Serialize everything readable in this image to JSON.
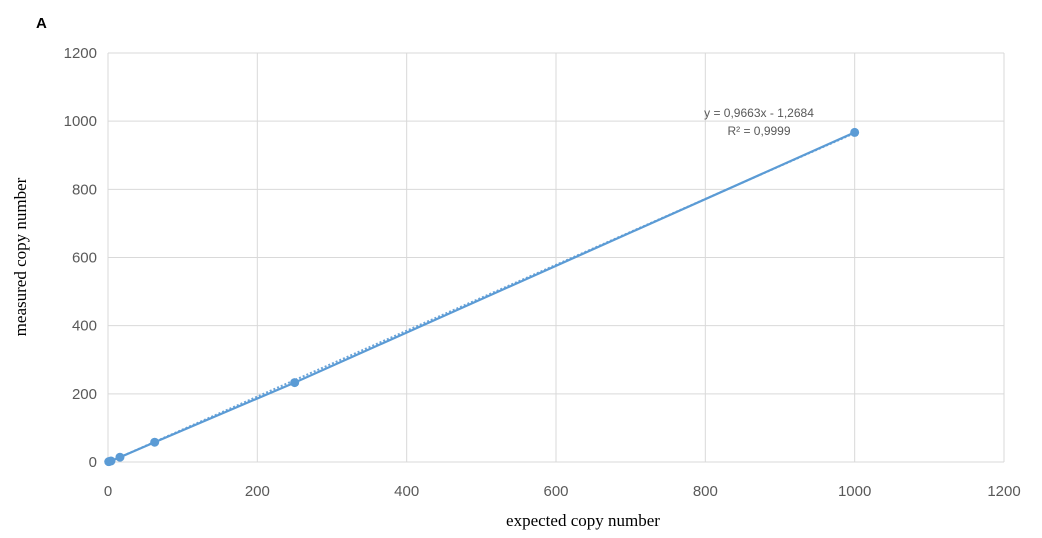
{
  "panel_label": "A",
  "chart_data": {
    "type": "scatter",
    "xlabel": "expected copy number",
    "ylabel": "measured copy number",
    "xlim": [
      0,
      1200
    ],
    "ylim": [
      0,
      1200
    ],
    "xticks": [
      0,
      200,
      400,
      600,
      800,
      1000,
      1200
    ],
    "yticks": [
      0,
      200,
      400,
      600,
      800,
      1000,
      1200
    ],
    "grid": true,
    "series": [
      {
        "x": [
          1,
          4,
          16,
          62.5,
          250,
          1000
        ],
        "y": [
          1,
          3,
          14,
          58,
          233,
          967
        ],
        "color": "#5b9bd5",
        "markers": true,
        "connected": true
      }
    ],
    "trendline": {
      "type": "linear",
      "slope": 0.9663,
      "intercept": -1.2684,
      "r2": 0.9999,
      "color": "#5b9bd5",
      "style": "dotted",
      "equation_text": "y = 0,9663x - 1,2684",
      "r2_text": "R² = 0,9999"
    }
  }
}
